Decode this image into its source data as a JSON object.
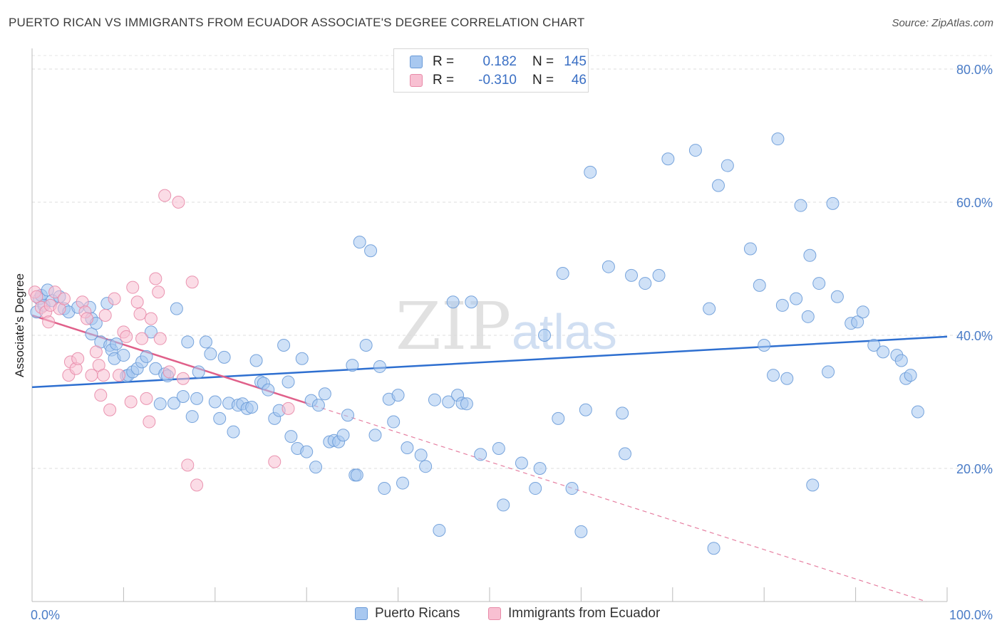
{
  "title": "PUERTO RICAN VS IMMIGRANTS FROM ECUADOR ASSOCIATE'S DEGREE CORRELATION CHART",
  "source": "Source: ZipAtlas.com",
  "watermark": {
    "zip": "ZIP",
    "atlas": "atlas"
  },
  "legend": {
    "rows": [
      {
        "r_label": "R =",
        "r_value": "0.182",
        "n_label": "N =",
        "n_value": "145",
        "color": "#a8c8f0",
        "border": "#6a9bd8"
      },
      {
        "r_label": "R =",
        "r_value": "-0.310",
        "n_label": "N =",
        "n_value": "46",
        "color": "#f8c0d2",
        "border": "#e88aa8"
      }
    ]
  },
  "bottom_legend": [
    {
      "label": "Puerto Ricans",
      "color": "#a8c8f0",
      "border": "#6a9bd8"
    },
    {
      "label": "Immigrants from Ecuador",
      "color": "#f8c0d2",
      "border": "#e88aa8"
    }
  ],
  "chart_data": {
    "type": "scatter",
    "title": "PUERTO RICAN VS IMMIGRANTS FROM ECUADOR ASSOCIATE'S DEGREE CORRELATION CHART",
    "xlabel": "",
    "ylabel": "Associate's Degree",
    "xlim": [
      0,
      100
    ],
    "ylim": [
      0,
      80
    ],
    "x_tick_labels": [
      {
        "value": 0,
        "label": "0.0%"
      },
      {
        "value": 100,
        "label": "100.0%"
      }
    ],
    "y_tick_labels": [
      {
        "value": 20,
        "label": "20.0%"
      },
      {
        "value": 40,
        "label": "40.0%"
      },
      {
        "value": 60,
        "label": "60.0%"
      },
      {
        "value": 80,
        "label": "80.0%"
      }
    ],
    "grid": true,
    "series": [
      {
        "name": "Puerto Ricans",
        "color": "#a8c8f0",
        "edge": "#6a9bd8",
        "trend": {
          "x0": 0,
          "y0": 32.2,
          "x1": 100,
          "y1": 39.8,
          "color": "#2e6fd0",
          "solid_to": 100
        },
        "points": [
          [
            0.5,
            43.5
          ],
          [
            0.8,
            45.5
          ],
          [
            1.0,
            46.0
          ],
          [
            1.3,
            44.5
          ],
          [
            1.7,
            46.8
          ],
          [
            2.2,
            45.2
          ],
          [
            3.0,
            45.8
          ],
          [
            3.5,
            44.0
          ],
          [
            4.0,
            43.5
          ],
          [
            5.0,
            44.2
          ],
          [
            6.3,
            44.2
          ],
          [
            6.5,
            40.2
          ],
          [
            6.5,
            42.5
          ],
          [
            7.0,
            41.8
          ],
          [
            7.5,
            39.0
          ],
          [
            8.2,
            44.8
          ],
          [
            8.5,
            38.5
          ],
          [
            8.7,
            37.8
          ],
          [
            9.0,
            36.5
          ],
          [
            9.2,
            38.7
          ],
          [
            10.0,
            37.0
          ],
          [
            10.3,
            33.9
          ],
          [
            10.5,
            34.0
          ],
          [
            11.0,
            34.5
          ],
          [
            11.5,
            35.0
          ],
          [
            12.0,
            36.0
          ],
          [
            12.5,
            36.8
          ],
          [
            13.0,
            40.5
          ],
          [
            13.5,
            35.0
          ],
          [
            14.0,
            29.7
          ],
          [
            14.5,
            34.2
          ],
          [
            14.8,
            33.9
          ],
          [
            15.5,
            29.8
          ],
          [
            15.8,
            44.0
          ],
          [
            16.5,
            30.8
          ],
          [
            17.0,
            39.0
          ],
          [
            17.5,
            27.8
          ],
          [
            18.0,
            30.5
          ],
          [
            18.2,
            34.5
          ],
          [
            19.0,
            39.0
          ],
          [
            19.5,
            37.2
          ],
          [
            20.0,
            30.0
          ],
          [
            20.5,
            27.5
          ],
          [
            21.0,
            36.7
          ],
          [
            21.5,
            29.8
          ],
          [
            22.0,
            25.5
          ],
          [
            22.5,
            29.5
          ],
          [
            23.0,
            29.7
          ],
          [
            23.5,
            29.0
          ],
          [
            24.0,
            29.2
          ],
          [
            24.5,
            36.2
          ],
          [
            25.0,
            33.0
          ],
          [
            25.3,
            32.8
          ],
          [
            25.8,
            31.8
          ],
          [
            26.5,
            27.5
          ],
          [
            27.0,
            28.7
          ],
          [
            27.5,
            38.5
          ],
          [
            28.0,
            33.0
          ],
          [
            28.3,
            24.8
          ],
          [
            29.0,
            23.0
          ],
          [
            29.5,
            36.5
          ],
          [
            30.0,
            22.5
          ],
          [
            30.5,
            30.2
          ],
          [
            31.0,
            20.2
          ],
          [
            31.3,
            29.5
          ],
          [
            32.0,
            31.2
          ],
          [
            32.5,
            24.0
          ],
          [
            33.0,
            24.2
          ],
          [
            33.5,
            24.0
          ],
          [
            34.0,
            25.0
          ],
          [
            34.5,
            28.0
          ],
          [
            35.0,
            35.5
          ],
          [
            35.3,
            19.0
          ],
          [
            35.5,
            19.0
          ],
          [
            35.8,
            54.0
          ],
          [
            36.5,
            38.5
          ],
          [
            37.0,
            52.7
          ],
          [
            37.5,
            25.0
          ],
          [
            38.0,
            35.3
          ],
          [
            38.5,
            17.0
          ],
          [
            39.0,
            30.4
          ],
          [
            39.5,
            27.0
          ],
          [
            40.0,
            31.0
          ],
          [
            40.5,
            17.8
          ],
          [
            41.0,
            23.1
          ],
          [
            42.5,
            22.0
          ],
          [
            43.0,
            20.3
          ],
          [
            44.0,
            30.3
          ],
          [
            44.5,
            10.7
          ],
          [
            45.5,
            30.0
          ],
          [
            46.0,
            45.0
          ],
          [
            46.5,
            31.0
          ],
          [
            47.0,
            29.8
          ],
          [
            47.5,
            29.7
          ],
          [
            48.0,
            45.0
          ],
          [
            49.0,
            22.1
          ],
          [
            51.0,
            23.0
          ],
          [
            51.5,
            14.5
          ],
          [
            53.5,
            20.8
          ],
          [
            55.0,
            17.0
          ],
          [
            55.5,
            20.0
          ],
          [
            56.0,
            40.0
          ],
          [
            57.5,
            27.5
          ],
          [
            58.0,
            49.3
          ],
          [
            59.0,
            17.0
          ],
          [
            60.0,
            10.5
          ],
          [
            60.5,
            28.8
          ],
          [
            61.0,
            64.5
          ],
          [
            63.0,
            50.3
          ],
          [
            64.5,
            28.3
          ],
          [
            64.8,
            22.2
          ],
          [
            65.5,
            49.0
          ],
          [
            67.0,
            47.8
          ],
          [
            68.5,
            49.0
          ],
          [
            69.5,
            66.5
          ],
          [
            72.5,
            67.8
          ],
          [
            74.0,
            44.0
          ],
          [
            74.5,
            8.0
          ],
          [
            75.0,
            62.5
          ],
          [
            76.0,
            65.5
          ],
          [
            78.5,
            53.0
          ],
          [
            79.5,
            47.5
          ],
          [
            80.0,
            38.5
          ],
          [
            81.0,
            34.0
          ],
          [
            81.5,
            69.5
          ],
          [
            82.0,
            44.5
          ],
          [
            82.5,
            33.5
          ],
          [
            83.5,
            45.5
          ],
          [
            84.0,
            59.5
          ],
          [
            84.8,
            42.8
          ],
          [
            85.0,
            52.0
          ],
          [
            85.3,
            17.5
          ],
          [
            86.0,
            47.8
          ],
          [
            87.0,
            34.5
          ],
          [
            87.5,
            59.8
          ],
          [
            88.0,
            45.8
          ],
          [
            89.5,
            41.8
          ],
          [
            90.2,
            42.0
          ],
          [
            90.8,
            43.5
          ],
          [
            92.0,
            38.5
          ],
          [
            93.0,
            37.5
          ],
          [
            94.5,
            37.0
          ],
          [
            95.0,
            36.2
          ],
          [
            95.5,
            33.5
          ],
          [
            96.0,
            34.0
          ],
          [
            96.8,
            28.5
          ]
        ]
      },
      {
        "name": "Immigrants from Ecuador",
        "color": "#f8c0d2",
        "edge": "#e88aa8",
        "trend": {
          "x0": 0,
          "y0": 43.0,
          "x1": 100,
          "y1": -1.0,
          "color": "#e0608a",
          "solid_to": 30
        },
        "points": [
          [
            0.3,
            46.5
          ],
          [
            0.5,
            45.8
          ],
          [
            1.0,
            44.2
          ],
          [
            1.5,
            43.5
          ],
          [
            1.8,
            42.0
          ],
          [
            2.0,
            44.5
          ],
          [
            2.5,
            46.5
          ],
          [
            3.0,
            44.0
          ],
          [
            3.5,
            45.5
          ],
          [
            4.0,
            34.0
          ],
          [
            4.2,
            36.0
          ],
          [
            4.8,
            35.0
          ],
          [
            5.0,
            36.5
          ],
          [
            5.5,
            45.0
          ],
          [
            5.8,
            43.5
          ],
          [
            6.0,
            42.5
          ],
          [
            6.5,
            34.0
          ],
          [
            7.0,
            37.5
          ],
          [
            7.3,
            35.5
          ],
          [
            7.5,
            31.0
          ],
          [
            7.8,
            34.0
          ],
          [
            8.0,
            43.0
          ],
          [
            8.5,
            28.8
          ],
          [
            9.0,
            45.5
          ],
          [
            9.5,
            34.0
          ],
          [
            10.0,
            40.5
          ],
          [
            10.3,
            39.8
          ],
          [
            10.8,
            30.0
          ],
          [
            11.0,
            47.2
          ],
          [
            11.5,
            45.0
          ],
          [
            11.8,
            43.2
          ],
          [
            12.0,
            39.5
          ],
          [
            12.5,
            30.5
          ],
          [
            12.8,
            27.0
          ],
          [
            13.0,
            42.5
          ],
          [
            13.5,
            48.5
          ],
          [
            13.8,
            46.5
          ],
          [
            14.0,
            39.5
          ],
          [
            14.5,
            61.0
          ],
          [
            15.0,
            34.5
          ],
          [
            16.0,
            60.0
          ],
          [
            16.5,
            33.5
          ],
          [
            17.0,
            20.5
          ],
          [
            17.5,
            48.0
          ],
          [
            18.0,
            17.5
          ],
          [
            26.5,
            21.0
          ],
          [
            28.0,
            29.0
          ]
        ]
      }
    ]
  }
}
